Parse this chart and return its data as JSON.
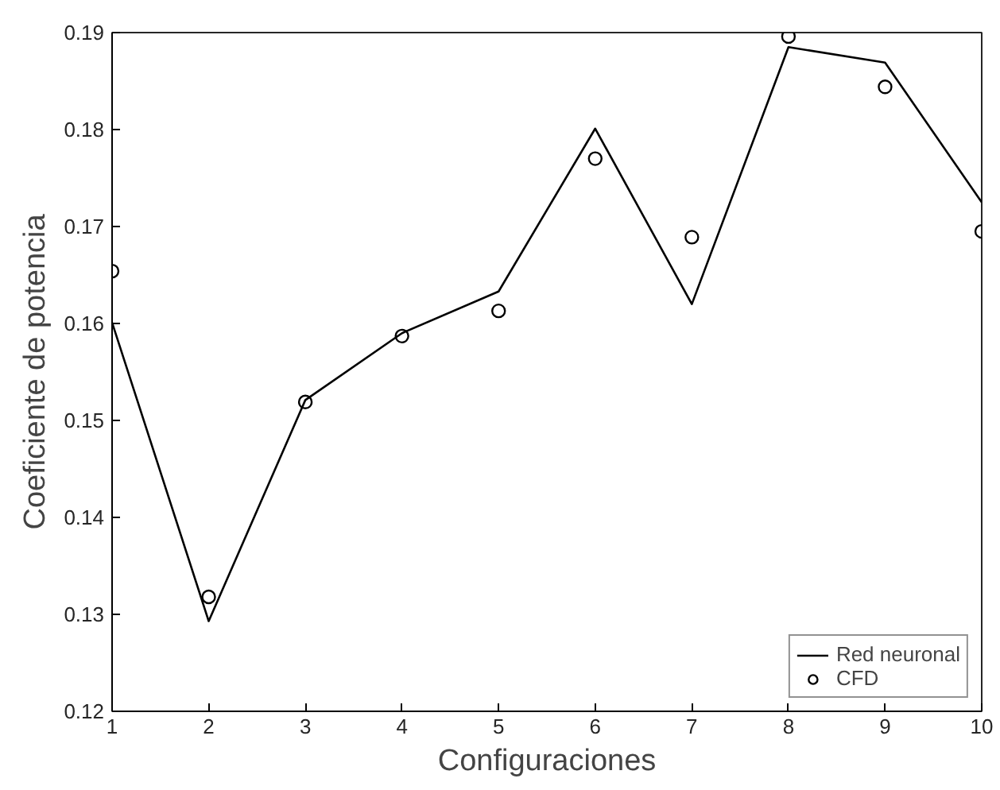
{
  "chart_data": {
    "type": "line",
    "xlabel": "Configuraciones",
    "ylabel": "Coeficiente de potencia",
    "x": [
      1,
      2,
      3,
      4,
      5,
      6,
      7,
      8,
      9,
      10
    ],
    "xlim": [
      1,
      10
    ],
    "xticks": [
      1,
      2,
      3,
      4,
      5,
      6,
      7,
      8,
      9,
      10
    ],
    "ylim": [
      0.12,
      0.19
    ],
    "yticks": [
      0.12,
      0.13,
      0.14,
      0.15,
      0.16,
      0.17,
      0.18,
      0.19
    ],
    "grid": false,
    "legend": "bottom right",
    "series": [
      {
        "name": "Red neuronal",
        "color": "#000000",
        "marker": "none",
        "line_style": "solid",
        "values": [
          0.1601,
          0.1293,
          0.1521,
          0.159,
          0.1633,
          0.1801,
          0.162,
          0.1885,
          0.1869,
          0.1725
        ]
      },
      {
        "name": "CFD",
        "type": "scatter",
        "color": "#000000",
        "marker": "circle",
        "values": [
          0.1654,
          0.1318,
          0.1519,
          0.1587,
          0.1613,
          0.177,
          0.1689,
          0.1896,
          0.1844,
          0.1695
        ]
      }
    ]
  }
}
